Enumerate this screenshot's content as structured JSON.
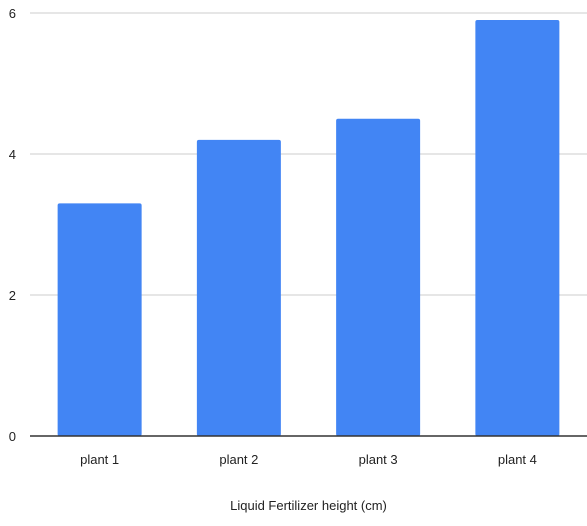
{
  "chart_data": {
    "type": "bar",
    "categories": [
      "plant 1",
      "plant 2",
      "plant 3",
      "plant 4"
    ],
    "series": [
      {
        "values": [
          3.3,
          4.2,
          4.5,
          5.9
        ]
      }
    ],
    "xlabel": "Liquid Fertilizer height (cm)",
    "ylabel": "",
    "ylim": [
      0,
      6
    ],
    "yticks": [
      "0",
      "2",
      "4",
      "6"
    ],
    "grid": true,
    "legend": "none",
    "colors": {
      "bar": "#4285f4",
      "grid": "#cccccc",
      "axis": "#333333"
    }
  }
}
